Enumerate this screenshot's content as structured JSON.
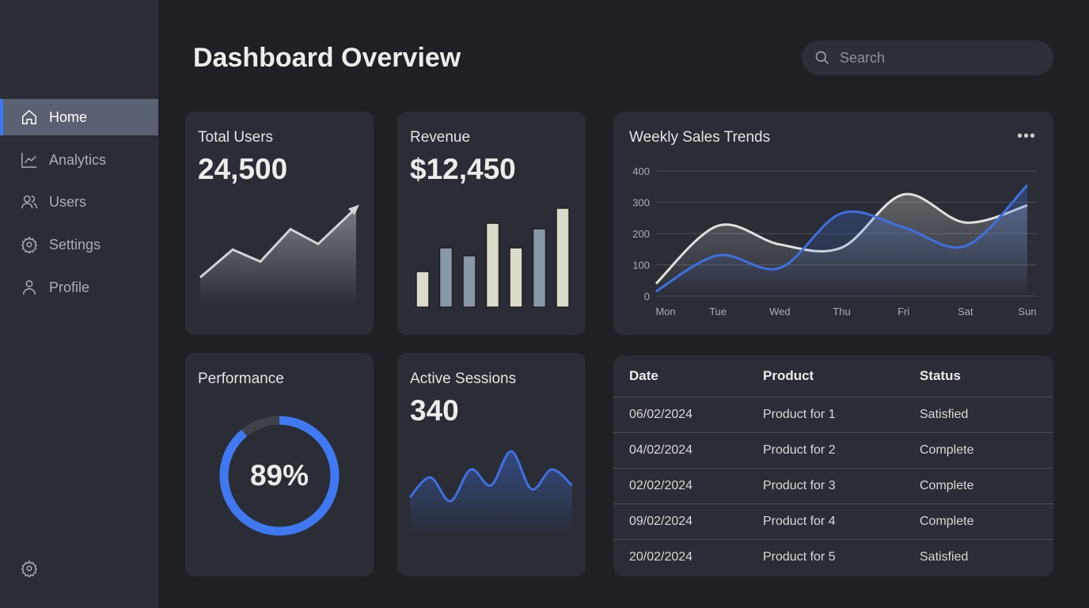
{
  "sidebar": {
    "items": [
      {
        "label": "Home",
        "icon": "home-icon",
        "active": true
      },
      {
        "label": "Analytics",
        "icon": "chart-icon"
      },
      {
        "label": "Users",
        "icon": "users-icon"
      },
      {
        "label": "Settings",
        "icon": "gear-icon"
      },
      {
        "label": "Profile",
        "icon": "user-icon"
      }
    ],
    "bottom_icon": "gear-icon"
  },
  "header": {
    "title": "Dashboard Overview",
    "search_placeholder": "Search"
  },
  "colors": {
    "accent": "#3f78f0",
    "bar_light": "#dcdacb",
    "bar_slate": "#8a97a6"
  },
  "cards": {
    "total_users": {
      "title": "Total Users",
      "value": "24,500",
      "trend": [
        10,
        40,
        27,
        62,
        46,
        85
      ]
    },
    "revenue": {
      "title": "Revenue",
      "value": "$12,450",
      "bars": [
        45,
        75,
        65,
        106,
        75,
        99,
        125
      ],
      "bar_colors": [
        "light",
        "slate",
        "slate",
        "light",
        "light",
        "slate",
        "light"
      ]
    },
    "performance": {
      "title": "Performance",
      "value": "89%",
      "percent": 89
    },
    "active_sessions": {
      "title": "Active Sessions",
      "value": "340",
      "trend": [
        20,
        45,
        15,
        55,
        35,
        78,
        30,
        55,
        35
      ]
    }
  },
  "chart_data": {
    "type": "line",
    "title": "Weekly Sales Trends",
    "categories": [
      "Mon",
      "Tue",
      "Wed",
      "Thu",
      "Fri",
      "Sat",
      "Sun"
    ],
    "ylim": [
      0,
      400
    ],
    "yticks": [
      0,
      100,
      200,
      300,
      400
    ],
    "grid": true,
    "series": [
      {
        "color": "#e0e0e0",
        "values": [
          40,
          225,
          165,
          155,
          325,
          235,
          290
        ]
      },
      {
        "color": "#3f6fe0",
        "values": [
          15,
          130,
          90,
          265,
          220,
          160,
          355
        ]
      }
    ]
  },
  "table": {
    "headers": [
      "Date",
      "Product",
      "Status"
    ],
    "rows": [
      [
        "06/02/2024",
        "Product for 1",
        "Satisfied"
      ],
      [
        "04/02/2024",
        "Product for 2",
        "Complete"
      ],
      [
        "02/02/2024",
        "Product for 3",
        "Complete"
      ],
      [
        "09/02/2024",
        "Product for 4",
        "Complete"
      ],
      [
        "20/02/2024",
        "Product for 5",
        "Satisfied"
      ]
    ]
  }
}
